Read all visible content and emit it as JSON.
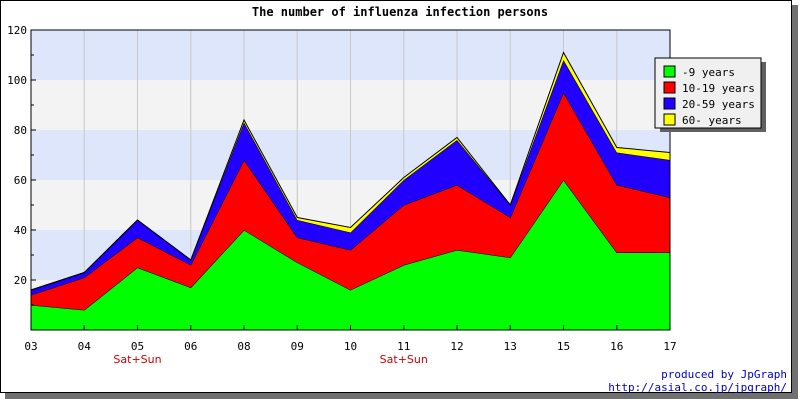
{
  "chart_data": {
    "type": "area",
    "stacked": true,
    "title": "The number of influenza infection persons",
    "categories": [
      "03",
      "04",
      "05",
      "06",
      "08",
      "09",
      "10",
      "11",
      "12",
      "13",
      "15",
      "16",
      "17"
    ],
    "weekend_labels": [
      {
        "category": "05",
        "text": "Sat+Sun"
      },
      {
        "category": "11",
        "text": "Sat+Sun"
      }
    ],
    "series": [
      {
        "name": "-9 years",
        "color": "#00ff00",
        "values": [
          10,
          8,
          25,
          17,
          40,
          27,
          16,
          26,
          32,
          29,
          60,
          31,
          31
        ]
      },
      {
        "name": "10-19 years",
        "color": "#ff0000",
        "values": [
          4,
          13,
          12,
          9,
          28,
          10,
          16,
          24,
          26,
          16,
          35,
          27,
          22
        ]
      },
      {
        "name": "20-59 years",
        "color": "#2200ff",
        "values": [
          2,
          2,
          7,
          2,
          15,
          7,
          7,
          10,
          18,
          5,
          13,
          13,
          15
        ]
      },
      {
        "name": "60- years",
        "color": "#ffff00",
        "values": [
          0,
          0,
          0,
          0,
          1,
          1,
          2,
          1,
          1,
          0,
          3,
          2,
          3
        ]
      }
    ],
    "ylim": [
      0,
      120
    ],
    "yticks": [
      20,
      40,
      60,
      80,
      100,
      120
    ],
    "band_colors": [
      "#dde6fb",
      "#f3f3f3"
    ],
    "legend_position": "top-right"
  },
  "credit": {
    "line1": "produced by JpGraph",
    "line2": "http://asial.co.jp/jpgraph/",
    "color": "#0000cc"
  }
}
